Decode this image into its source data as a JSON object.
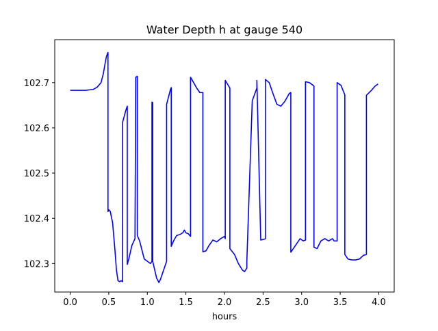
{
  "chart_data": {
    "type": "line",
    "title": "Water Depth h at gauge 540",
    "xlabel": "hours",
    "ylabel": "",
    "xlim": [
      -0.2,
      4.2
    ],
    "ylim": [
      102.237,
      102.795
    ],
    "x_ticks": [
      0.0,
      0.5,
      1.0,
      1.5,
      2.0,
      2.5,
      3.0,
      3.5,
      4.0
    ],
    "x_tick_labels": [
      "0.0",
      "0.5",
      "1.0",
      "1.5",
      "2.0",
      "2.5",
      "3.0",
      "3.5",
      "4.0"
    ],
    "y_ticks": [
      102.3,
      102.4,
      102.5,
      102.6,
      102.7
    ],
    "y_tick_labels": [
      "102.3",
      "102.4",
      "102.5",
      "102.6",
      "102.7"
    ],
    "grid": false,
    "line_color": "#0000ff",
    "series": [
      {
        "x": [
          0.0,
          0.1,
          0.2,
          0.3,
          0.35,
          0.4,
          0.43,
          0.45,
          0.47,
          0.49,
          0.49,
          0.5,
          0.52,
          0.55,
          0.58,
          0.6,
          0.62,
          0.64,
          0.66,
          0.68,
          0.68,
          0.7,
          0.72,
          0.74,
          0.74,
          0.76,
          0.8,
          0.84,
          0.85,
          0.87,
          0.87,
          0.9,
          0.93,
          0.96,
          1.0,
          1.04,
          1.06,
          1.06,
          1.07,
          1.07,
          1.09,
          1.12,
          1.15,
          1.17,
          1.2,
          1.22,
          1.25,
          1.25,
          1.3,
          1.31,
          1.31,
          1.34,
          1.38,
          1.42,
          1.46,
          1.48,
          1.5,
          1.53,
          1.56,
          1.56,
          1.6,
          1.64,
          1.68,
          1.72,
          1.72,
          1.76,
          1.8,
          1.85,
          1.9,
          1.95,
          2.0,
          2.01,
          2.01,
          2.07,
          2.07,
          2.13,
          2.18,
          2.23,
          2.26,
          2.29,
          2.29,
          2.36,
          2.42,
          2.42,
          2.47,
          2.52,
          2.53,
          2.53,
          2.58,
          2.63,
          2.68,
          2.73,
          2.78,
          2.84,
          2.86,
          2.86,
          2.92,
          2.98,
          3.02,
          3.05,
          3.05,
          3.1,
          3.15,
          3.16,
          3.16,
          3.2,
          3.25,
          3.3,
          3.35,
          3.4,
          3.42,
          3.44,
          3.46,
          3.46,
          3.51,
          3.56,
          3.56,
          3.6,
          3.65,
          3.7,
          3.75,
          3.8,
          3.84,
          3.84,
          3.9,
          3.95,
          3.99
        ],
        "values": [
          102.683,
          102.683,
          102.683,
          102.685,
          102.69,
          102.7,
          102.72,
          102.74,
          102.758,
          102.767,
          102.415,
          102.419,
          102.415,
          102.39,
          102.33,
          102.285,
          102.262,
          102.26,
          102.262,
          102.26,
          102.613,
          102.625,
          102.638,
          102.648,
          102.298,
          102.31,
          102.34,
          102.355,
          102.712,
          102.714,
          102.362,
          102.35,
          102.33,
          102.31,
          102.305,
          102.3,
          102.305,
          102.657,
          102.656,
          102.305,
          102.29,
          102.268,
          102.258,
          102.265,
          102.28,
          102.29,
          102.305,
          102.652,
          102.685,
          102.689,
          102.338,
          102.35,
          102.362,
          102.364,
          102.368,
          102.374,
          102.368,
          102.366,
          102.36,
          102.712,
          102.7,
          102.688,
          102.678,
          102.678,
          102.326,
          102.328,
          102.34,
          102.352,
          102.348,
          102.355,
          102.36,
          102.355,
          102.705,
          102.688,
          102.333,
          102.32,
          102.3,
          102.286,
          102.282,
          102.29,
          102.305,
          102.66,
          102.688,
          102.705,
          102.352,
          102.354,
          102.355,
          102.707,
          102.7,
          102.675,
          102.652,
          102.648,
          102.658,
          102.676,
          102.678,
          102.325,
          102.34,
          102.355,
          102.35,
          102.352,
          102.702,
          102.7,
          102.694,
          102.692,
          102.336,
          102.333,
          102.35,
          102.355,
          102.35,
          102.355,
          102.35,
          102.35,
          102.35,
          102.7,
          102.694,
          102.673,
          102.32,
          102.31,
          102.308,
          102.308,
          102.31,
          102.318,
          102.32,
          102.672,
          102.682,
          102.692,
          102.697
        ]
      }
    ]
  }
}
